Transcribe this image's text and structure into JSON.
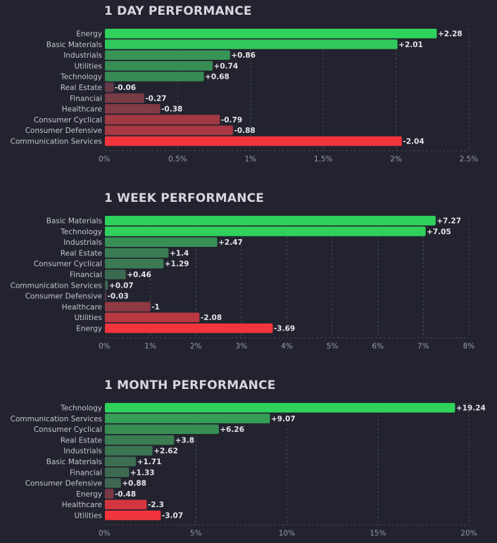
{
  "chart_data": [
    {
      "type": "bar",
      "orientation": "horizontal",
      "title": "1 DAY PERFORMANCE",
      "categories": [
        "Energy",
        "Basic Materials",
        "Industrials",
        "Utilities",
        "Technology",
        "Real Estate",
        "Financial",
        "Healthcare",
        "Consumer Cyclical",
        "Consumer Defensive",
        "Communication Services"
      ],
      "values": [
        2.28,
        2.01,
        0.86,
        0.74,
        0.68,
        -0.06,
        -0.27,
        -0.38,
        -0.79,
        -0.88,
        -2.04
      ],
      "value_labels": [
        "+2.28",
        "+2.01",
        "+0.86",
        "+0.74",
        "+0.68",
        "-0.06",
        "-0.27",
        "-0.38",
        "-0.79",
        "-0.88",
        "-2.04"
      ],
      "xlim": [
        0,
        2.5
      ],
      "ticks": [
        0,
        0.5,
        1,
        1.5,
        2,
        2.5
      ],
      "tick_labels": [
        "0%",
        "0.5%",
        "1%",
        "1.5%",
        "2%",
        "2.5%"
      ],
      "grid": true
    },
    {
      "type": "bar",
      "orientation": "horizontal",
      "title": "1 WEEK PERFORMANCE",
      "categories": [
        "Basic Materials",
        "Technology",
        "Industrials",
        "Real Estate",
        "Consumer Cyclical",
        "Financial",
        "Communication Services",
        "Consumer Defensive",
        "Healthcare",
        "Utilities",
        "Energy"
      ],
      "values": [
        7.27,
        7.05,
        2.47,
        1.4,
        1.29,
        0.46,
        0.07,
        -0.03,
        -1,
        -2.08,
        -3.69
      ],
      "value_labels": [
        "+7.27",
        "+7.05",
        "+2.47",
        "+1.4",
        "+1.29",
        "+0.46",
        "+0.07",
        "-0.03",
        "-1",
        "-2.08",
        "-3.69"
      ],
      "xlim": [
        0,
        8
      ],
      "ticks": [
        0,
        1,
        2,
        3,
        4,
        5,
        6,
        7,
        8
      ],
      "tick_labels": [
        "0%",
        "1%",
        "2%",
        "3%",
        "4%",
        "5%",
        "6%",
        "7%",
        "8%"
      ],
      "grid": true
    },
    {
      "type": "bar",
      "orientation": "horizontal",
      "title": "1 MONTH PERFORMANCE",
      "categories": [
        "Technology",
        "Communication Services",
        "Consumer Cyclical",
        "Real Estate",
        "Industrials",
        "Basic Materials",
        "Financial",
        "Consumer Defensive",
        "Energy",
        "Healthcare",
        "Utilities"
      ],
      "values": [
        19.24,
        9.07,
        6.26,
        3.8,
        2.62,
        1.71,
        1.33,
        0.88,
        -0.48,
        -2.3,
        -3.07
      ],
      "value_labels": [
        "+19.24",
        "+9.07",
        "+6.26",
        "+3.8",
        "+2.62",
        "+1.71",
        "+1.33",
        "+0.88",
        "-0.48",
        "-2.3",
        "-3.07"
      ],
      "xlim": [
        0,
        20
      ],
      "ticks": [
        0,
        5,
        10,
        15,
        20
      ],
      "tick_labels": [
        "0%",
        "5%",
        "10%",
        "15%",
        "20%"
      ],
      "grid": true
    }
  ],
  "colors": {
    "positive_strong": "#2fd35c",
    "positive_weak": "#3e5d50",
    "negative_weak": "#5a3c48",
    "negative_strong": "#f2353d",
    "grid": "#454754"
  }
}
